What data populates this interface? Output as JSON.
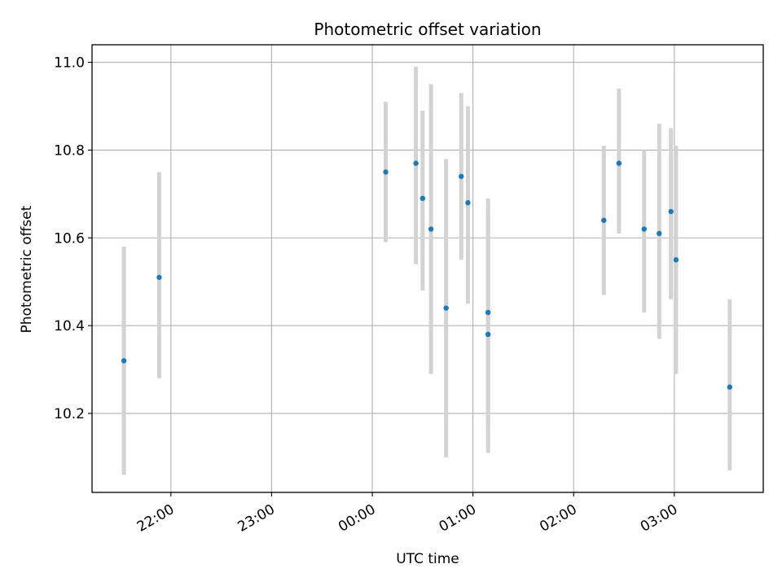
{
  "chart_data": {
    "type": "scatter",
    "title": "Photometric offset variation",
    "xlabel": "UTC time",
    "ylabel": "Photometric offset",
    "xlim": [
      "21:13",
      "03:53"
    ],
    "ylim": [
      10.02,
      11.04
    ],
    "x_ticks": [
      "22:00",
      "23:00",
      "00:00",
      "01:00",
      "02:00",
      "03:00"
    ],
    "y_ticks": [
      "10.2",
      "10.4",
      "10.6",
      "10.8",
      "11.0"
    ],
    "grid": true,
    "colors": {
      "point": "#1f77b4",
      "errorbar": "#d3d3d3",
      "grid": "#b0b0b0"
    },
    "series": [
      {
        "points": [
          {
            "x": "21:32",
            "y": 10.32,
            "ylow": 10.06,
            "yhigh": 10.58
          },
          {
            "x": "21:53",
            "y": 10.51,
            "ylow": 10.28,
            "yhigh": 10.75
          },
          {
            "x": "00:08",
            "y": 10.75,
            "ylow": 10.59,
            "yhigh": 10.91
          },
          {
            "x": "00:26",
            "y": 10.77,
            "ylow": 10.54,
            "yhigh": 10.99
          },
          {
            "x": "00:30",
            "y": 10.69,
            "ylow": 10.48,
            "yhigh": 10.89
          },
          {
            "x": "00:35",
            "y": 10.62,
            "ylow": 10.29,
            "yhigh": 10.95
          },
          {
            "x": "00:44",
            "y": 10.44,
            "ylow": 10.1,
            "yhigh": 10.78
          },
          {
            "x": "00:53",
            "y": 10.74,
            "ylow": 10.55,
            "yhigh": 10.93
          },
          {
            "x": "00:57",
            "y": 10.68,
            "ylow": 10.45,
            "yhigh": 10.9
          },
          {
            "x": "01:09",
            "y": 10.38,
            "ylow": 10.11,
            "yhigh": 10.66
          },
          {
            "x": "01:09",
            "y": 10.43,
            "ylow": 10.17,
            "yhigh": 10.69
          },
          {
            "x": "02:18",
            "y": 10.64,
            "ylow": 10.47,
            "yhigh": 10.81
          },
          {
            "x": "02:27",
            "y": 10.77,
            "ylow": 10.61,
            "yhigh": 10.94
          },
          {
            "x": "02:42",
            "y": 10.62,
            "ylow": 10.43,
            "yhigh": 10.8
          },
          {
            "x": "02:51",
            "y": 10.61,
            "ylow": 10.37,
            "yhigh": 10.86
          },
          {
            "x": "02:58",
            "y": 10.66,
            "ylow": 10.46,
            "yhigh": 10.85
          },
          {
            "x": "03:01",
            "y": 10.55,
            "ylow": 10.29,
            "yhigh": 10.81
          },
          {
            "x": "03:33",
            "y": 10.26,
            "ylow": 10.07,
            "yhigh": 10.46
          }
        ]
      }
    ]
  }
}
